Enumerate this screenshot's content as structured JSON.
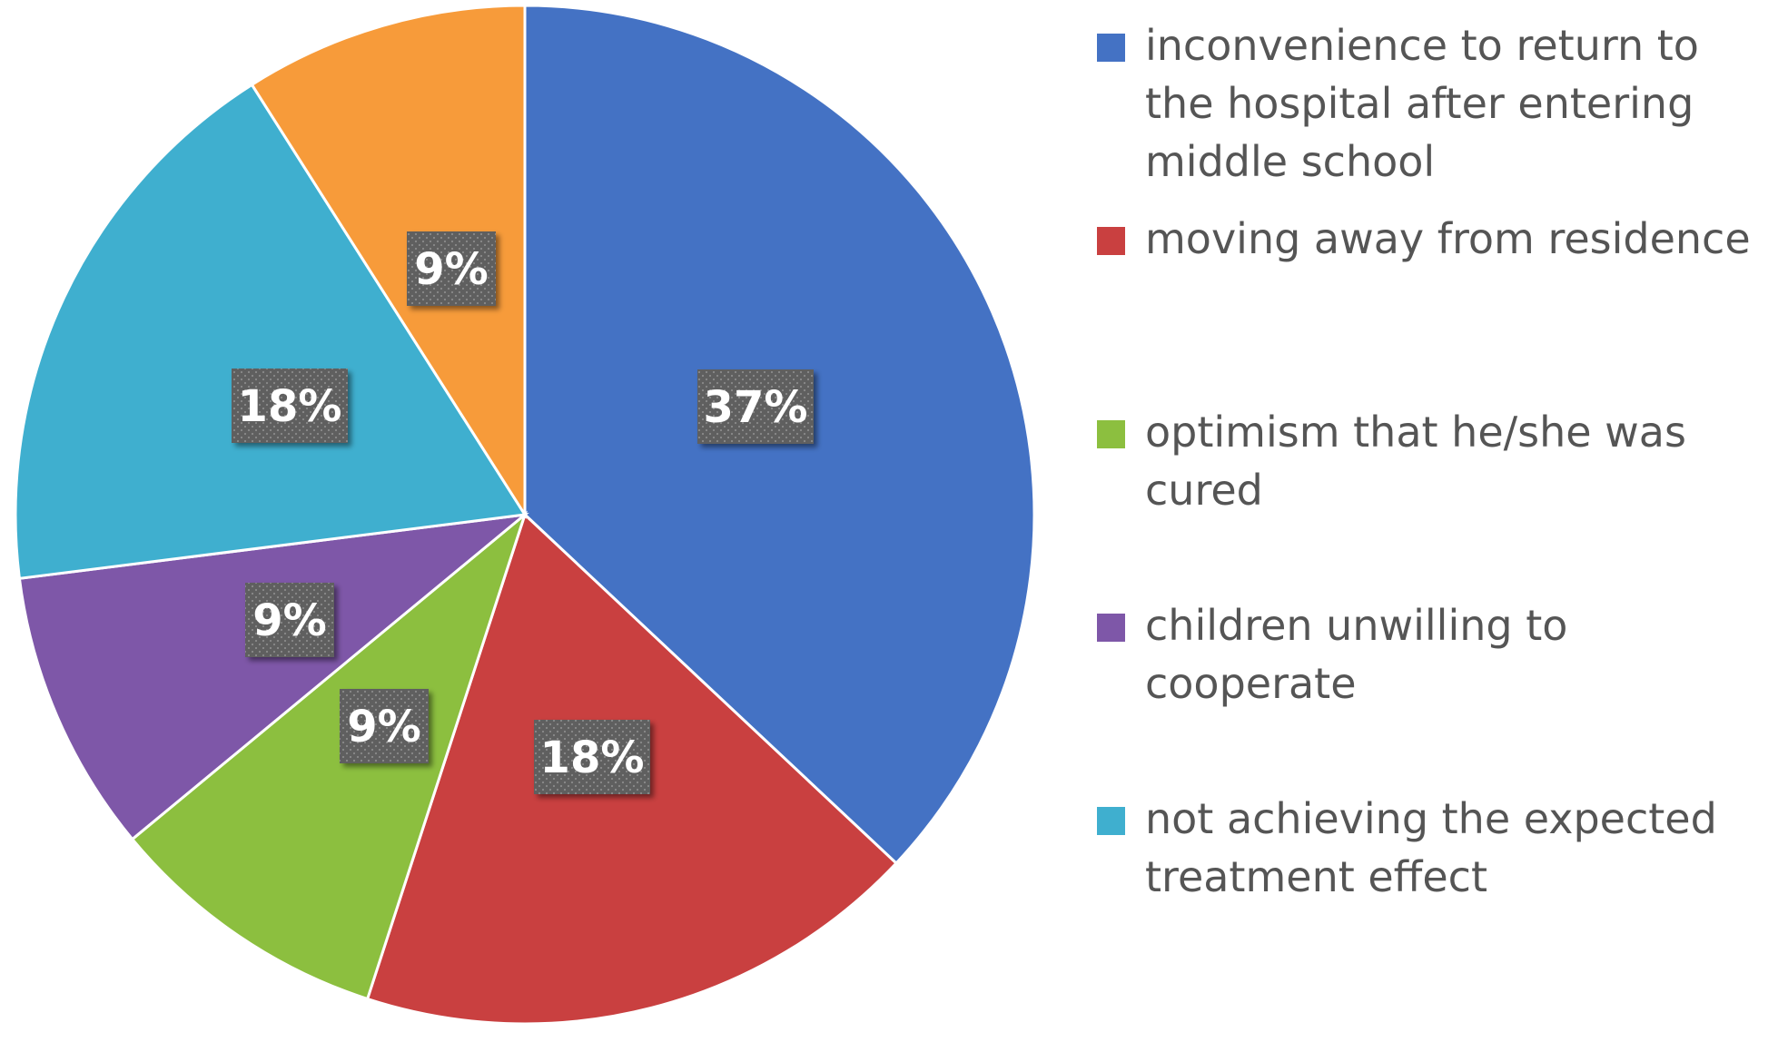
{
  "chart_data": {
    "type": "pie",
    "categories": [
      "inconvenience to return to the hospital after entering middle school",
      " moving away from residence",
      " optimism that he/she was cured",
      "children unwilling to cooperate",
      "not achieving the expected treatment effect",
      ""
    ],
    "values": [
      37,
      18,
      9,
      9,
      18,
      9
    ],
    "data_labels": [
      "37%",
      "18%",
      "9%",
      "9%",
      "18%",
      "9%"
    ],
    "colors": [
      "#4472C4",
      "#C94040",
      "#8CBF3F",
      "#7E57A8",
      "#3FAFCF",
      "#F79B3A"
    ],
    "legend": {
      "position": "right",
      "entries": [
        {
          "label": "inconvenience to return to\nthe hospital after entering\nmiddle school",
          "color": "#4472C4"
        },
        {
          "label": " moving away from residence",
          "color": "#C94040"
        },
        {
          "label": " optimism that he/she was\ncured",
          "color": "#8CBF3F"
        },
        {
          "label": "children unwilling to\ncooperate",
          "color": "#7E57A8"
        },
        {
          "label": "not achieving the expected\ntreatment effect",
          "color": "#3FAFCF"
        }
      ]
    }
  }
}
